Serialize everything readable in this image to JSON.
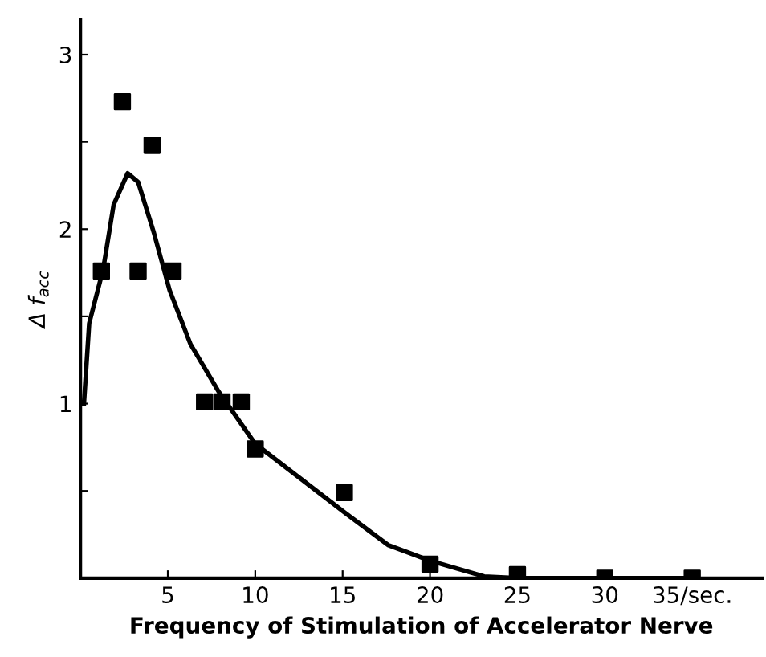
{
  "chart_data": {
    "type": "scatter",
    "xlabel": "Frequency of Stimulation of Accelerator Nerve",
    "ylabel": "Δ f$_{acc}$",
    "xlim": [
      0,
      39
    ],
    "ylim": [
      0,
      3.2
    ],
    "xticks": [
      5,
      10,
      15,
      20,
      25,
      30,
      {
        "value": 35,
        "label": "35/sec."
      }
    ],
    "yticks": [
      {
        "value": 0.5,
        "label": null
      },
      1,
      {
        "value": 1.5,
        "label": null
      },
      2,
      {
        "value": 2.5,
        "label": null
      },
      3
    ],
    "grid": false,
    "marker": "square",
    "series": [
      {
        "color": "#000000",
        "x": [
          1.2,
          2.4,
          3.3,
          4.1,
          5.3,
          7.1,
          8.1,
          9.2,
          10,
          15.1,
          20,
          25,
          30,
          35
        ],
        "values": [
          1.76,
          2.73,
          1.76,
          2.48,
          1.76,
          1.01,
          1.01,
          1.01,
          0.74,
          0.49,
          0.08,
          0.02,
          0,
          0
        ]
      },
      {
        "type": "line",
        "color": "#000000",
        "marker": "none",
        "x": [
          0.2,
          0.5,
          1.3,
          1.9,
          2.7,
          3.3,
          4.2,
          5.1,
          6.3,
          7.9,
          10,
          12.6,
          15.2,
          17.6,
          20,
          23.1,
          25,
          30,
          35
        ],
        "values": [
          1.0,
          1.46,
          1.77,
          2.14,
          2.32,
          2.27,
          1.98,
          1.65,
          1.34,
          1.07,
          0.77,
          0.57,
          0.37,
          0.19,
          0.1,
          0.01,
          0,
          0,
          0
        ]
      }
    ]
  }
}
